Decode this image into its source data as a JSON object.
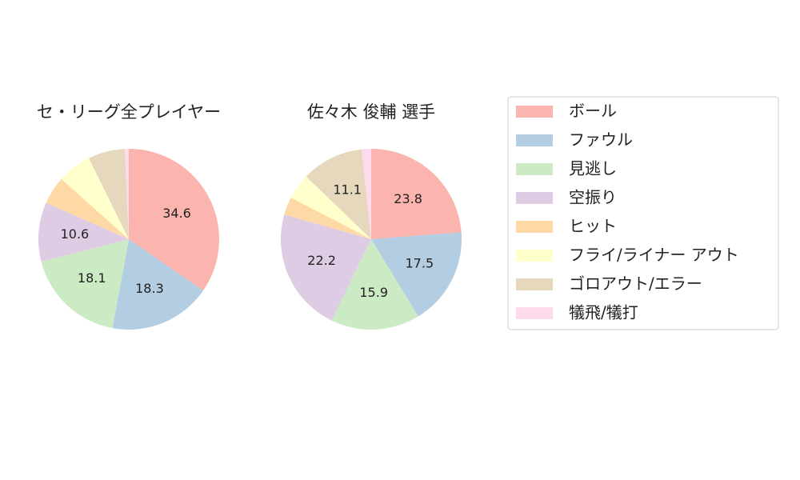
{
  "chart_data": [
    {
      "type": "pie",
      "title": "セ・リーグ全プレイヤー",
      "values": [
        34.6,
        18.3,
        18.1,
        10.6,
        5.0,
        6.1,
        6.6,
        0.7
      ],
      "value_labels": [
        "34.6",
        "18.3",
        "18.1",
        "10.6",
        null,
        null,
        null,
        null
      ]
    },
    {
      "type": "pie",
      "title": "佐々木 俊輔  選手",
      "values": [
        23.8,
        17.5,
        15.9,
        22.2,
        3.2,
        4.6,
        11.1,
        1.7
      ],
      "value_labels": [
        "23.8",
        "17.5",
        "15.9",
        "22.2",
        null,
        null,
        "11.1",
        null
      ]
    }
  ],
  "legend": {
    "labels": [
      "ボール",
      "ファウル",
      "見逃し",
      "空振り",
      "ヒット",
      "フライ/ライナー アウト",
      "ゴロアウト/エラー",
      "犠飛/犠打"
    ],
    "colors": [
      "#fbb4ae",
      "#b3cde3",
      "#ccebc5",
      "#decbe4",
      "#fed9a6",
      "#ffffcc",
      "#e5d8bd",
      "#fddaec"
    ]
  }
}
